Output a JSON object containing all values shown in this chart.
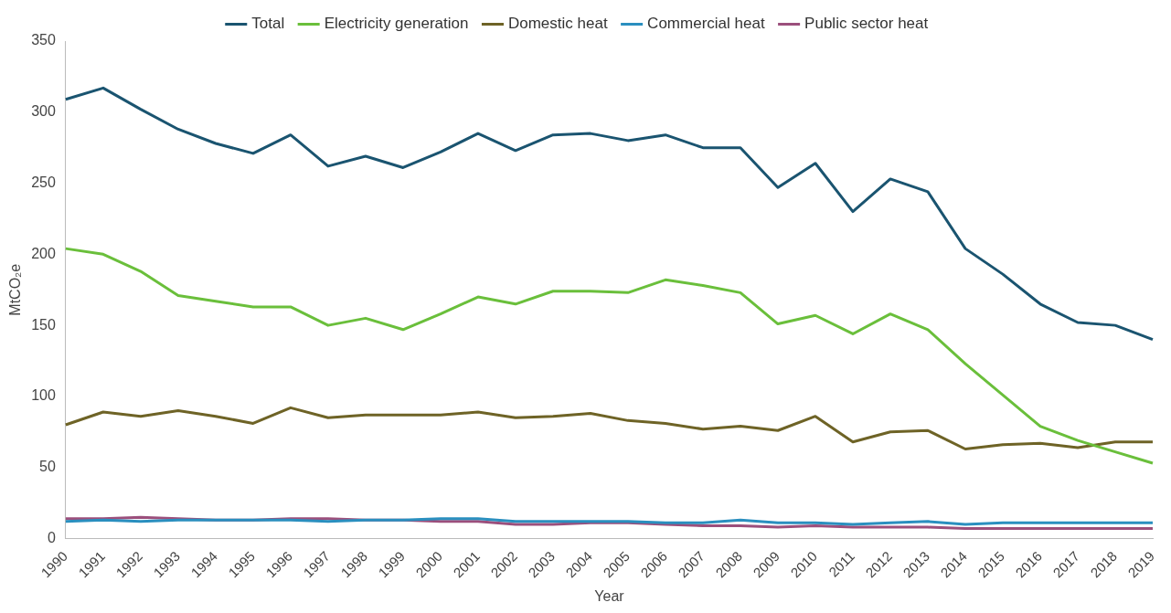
{
  "chart_data": {
    "type": "line",
    "xlabel": "Year",
    "ylabel": "MtCO₂e",
    "categories": [
      "1990",
      "1991",
      "1992",
      "1993",
      "1994",
      "1995",
      "1996",
      "1997",
      "1998",
      "1999",
      "2000",
      "2001",
      "2002",
      "2003",
      "2004",
      "2005",
      "2006",
      "2007",
      "2008",
      "2009",
      "2010",
      "2011",
      "2012",
      "2013",
      "2014",
      "2015",
      "2016",
      "2017",
      "2018",
      "2019"
    ],
    "series": [
      {
        "name": "Total",
        "color": "#1a5470",
        "values": [
          309,
          317,
          302,
          288,
          278,
          271,
          284,
          262,
          269,
          261,
          272,
          285,
          273,
          284,
          285,
          280,
          284,
          275,
          275,
          247,
          264,
          230,
          253,
          244,
          204,
          186,
          165,
          152,
          150,
          140
        ]
      },
      {
        "name": "Electricity generation",
        "color": "#6abf3b",
        "values": [
          204,
          200,
          188,
          171,
          167,
          163,
          163,
          150,
          155,
          147,
          158,
          170,
          165,
          174,
          174,
          173,
          182,
          178,
          173,
          151,
          157,
          144,
          158,
          147,
          123,
          101,
          79,
          69,
          61,
          53
        ]
      },
      {
        "name": "Domestic heat",
        "color": "#6e6326",
        "values": [
          80,
          89,
          86,
          90,
          86,
          81,
          92,
          85,
          87,
          87,
          87,
          89,
          85,
          86,
          88,
          83,
          81,
          77,
          79,
          76,
          86,
          68,
          75,
          76,
          63,
          66,
          67,
          64,
          68,
          68
        ]
      },
      {
        "name": "Commercial heat",
        "color": "#2a8fbf",
        "values": [
          12,
          13,
          12,
          13,
          13,
          13,
          13,
          12,
          13,
          13,
          14,
          14,
          12,
          12,
          12,
          12,
          11,
          11,
          13,
          11,
          11,
          10,
          11,
          12,
          10,
          11,
          11,
          11,
          11,
          11
        ]
      },
      {
        "name": "Public sector heat",
        "color": "#9b4f7c",
        "values": [
          14,
          14,
          15,
          14,
          13,
          13,
          14,
          14,
          13,
          13,
          12,
          12,
          10,
          10,
          11,
          11,
          10,
          9,
          9,
          8,
          9,
          8,
          8,
          8,
          7,
          7,
          7,
          7,
          7,
          7
        ]
      }
    ],
    "ylim": [
      0,
      350
    ],
    "yticks": [
      0,
      50,
      100,
      150,
      200,
      250,
      300,
      350
    ],
    "grid": false,
    "legend": "top",
    "marker": "none",
    "line_style": "solid"
  }
}
